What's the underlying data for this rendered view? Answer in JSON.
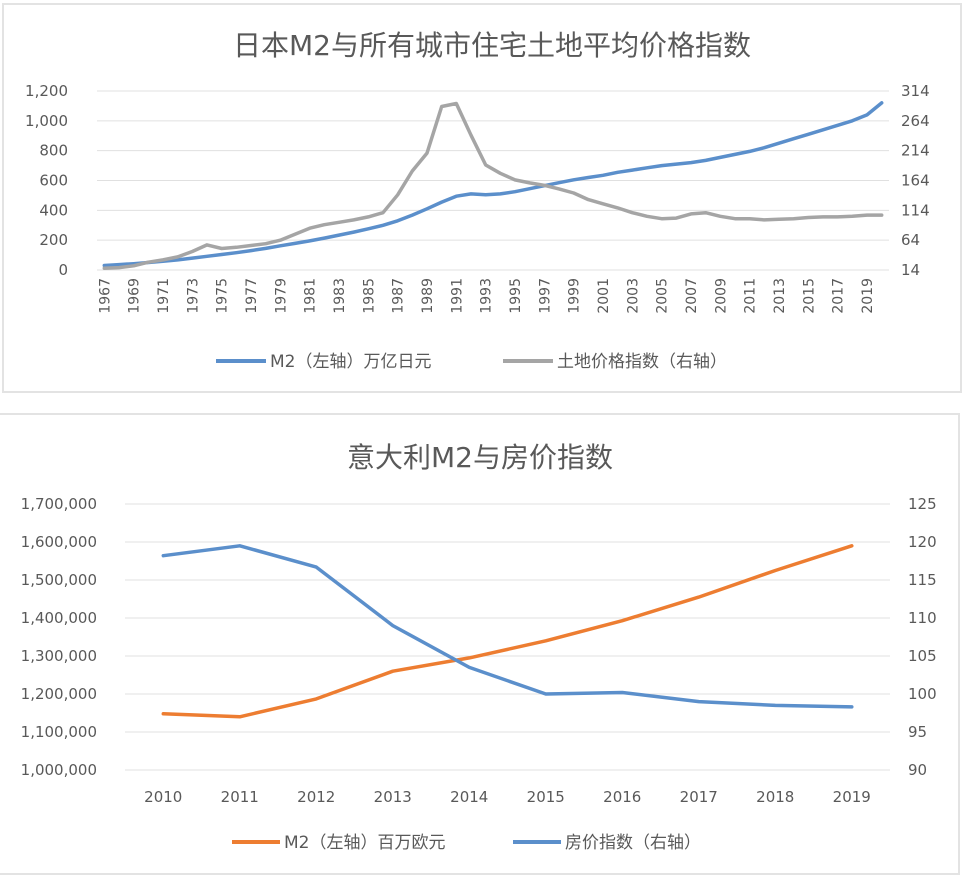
{
  "chart_data": [
    {
      "type": "line",
      "title": "日本M2与所有城市住宅土地平均价格指数",
      "xlabel": "",
      "ylabel": "",
      "y2label": "",
      "x": [
        1967,
        1968,
        1969,
        1970,
        1971,
        1972,
        1973,
        1974,
        1975,
        1976,
        1977,
        1978,
        1979,
        1980,
        1981,
        1982,
        1983,
        1984,
        1985,
        1986,
        1987,
        1988,
        1989,
        1990,
        1991,
        1992,
        1993,
        1994,
        1995,
        1996,
        1997,
        1998,
        1999,
        2000,
        2001,
        2002,
        2003,
        2004,
        2005,
        2006,
        2007,
        2008,
        2009,
        2010,
        2011,
        2012,
        2013,
        2014,
        2015,
        2016,
        2017,
        2018,
        2019,
        2020
      ],
      "x_tick_labels": [
        "1967",
        "1969",
        "1971",
        "1973",
        "1975",
        "1977",
        "1979",
        "1981",
        "1983",
        "1985",
        "1987",
        "1989",
        "1991",
        "1993",
        "1995",
        "1997",
        "1999",
        "2001",
        "2003",
        "2005",
        "2007",
        "2009",
        "2011",
        "2013",
        "2015",
        "2017",
        "2019"
      ],
      "ylim": [
        0,
        1200
      ],
      "y_ticks": [
        "0",
        "200",
        "400",
        "600",
        "800",
        "1,000",
        "1,200"
      ],
      "y2lim": [
        14,
        314
      ],
      "y2_ticks": [
        "14",
        "64",
        "114",
        "164",
        "214",
        "264",
        "314"
      ],
      "grid": true,
      "legend_position": "bottom",
      "series": [
        {
          "name": "M2（左轴）万亿日元",
          "axis": "left",
          "color": "#5b8fcb",
          "values": [
            30,
            36,
            42,
            50,
            58,
            68,
            80,
            92,
            104,
            116,
            130,
            145,
            162,
            178,
            195,
            214,
            234,
            254,
            276,
            300,
            330,
            368,
            410,
            455,
            495,
            510,
            505,
            510,
            525,
            545,
            565,
            585,
            605,
            620,
            635,
            655,
            670,
            685,
            700,
            710,
            720,
            735,
            755,
            775,
            795,
            820,
            850,
            880,
            910,
            940,
            970,
            1000,
            1040,
            1120
          ]
        },
        {
          "name": "土地价格指数（右轴）",
          "axis": "right",
          "color": "#a5a5a5",
          "values": [
            17,
            18,
            21,
            27,
            31,
            36,
            45,
            56,
            50,
            52,
            55,
            58,
            64,
            74,
            84,
            90,
            94,
            98,
            103,
            110,
            140,
            180,
            210,
            288,
            293,
            240,
            190,
            176,
            165,
            160,
            156,
            150,
            143,
            132,
            125,
            118,
            110,
            104,
            100,
            101,
            108,
            110,
            104,
            100,
            100,
            98,
            99,
            100,
            102,
            103,
            103,
            104,
            106,
            106
          ]
        }
      ]
    },
    {
      "type": "line",
      "title": "意大利M2与房价指数",
      "xlabel": "",
      "ylabel": "",
      "y2label": "",
      "categories": [
        "2010",
        "2011",
        "2012",
        "2013",
        "2014",
        "2015",
        "2016",
        "2017",
        "2018",
        "2019"
      ],
      "ylim": [
        1000000,
        1700000
      ],
      "y_ticks": [
        "1,000,000",
        "1,100,000",
        "1,200,000",
        "1,300,000",
        "1,400,000",
        "1,500,000",
        "1,600,000",
        "1,700,000"
      ],
      "y2lim": [
        90,
        125
      ],
      "y2_ticks": [
        "90",
        "95",
        "100",
        "105",
        "110",
        "115",
        "120",
        "125"
      ],
      "grid": true,
      "legend_position": "bottom",
      "series": [
        {
          "name": "M2（左轴）百万欧元",
          "axis": "left",
          "color": "#ed7d31",
          "values": [
            1148000,
            1140000,
            1187000,
            1260000,
            1295000,
            1340000,
            1393000,
            1455000,
            1525000,
            1590000
          ]
        },
        {
          "name": "房价指数（右轴）",
          "axis": "right",
          "color": "#5b8fcb",
          "values": [
            118.2,
            119.5,
            116.7,
            109.0,
            103.5,
            100.0,
            100.2,
            99.0,
            98.5,
            98.3
          ]
        }
      ]
    }
  ]
}
